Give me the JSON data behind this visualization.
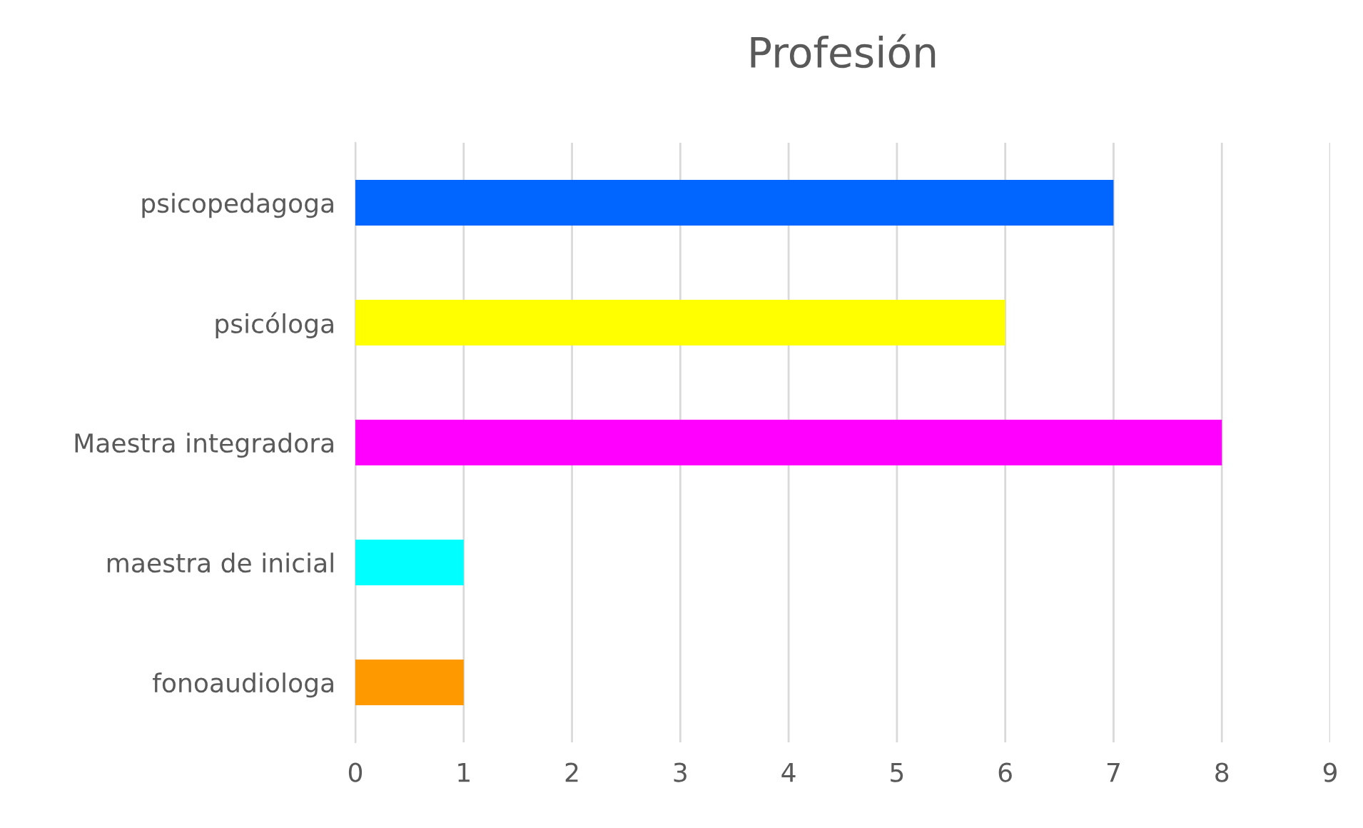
{
  "chart_data": {
    "type": "bar",
    "orientation": "horizontal",
    "title": "Profesión",
    "categories": [
      "psicopedagoga",
      "psicóloga",
      "Maestra integradora",
      "maestra de inicial",
      "fonoaudiologa"
    ],
    "values": [
      7,
      6,
      8,
      1,
      1
    ],
    "colors": [
      "#0066ff",
      "#ffff00",
      "#ff00ff",
      "#00ffff",
      "#ff9900"
    ],
    "xlim": [
      0,
      9
    ],
    "xticks": [
      0,
      1,
      2,
      3,
      4,
      5,
      6,
      7,
      8,
      9
    ],
    "grid": "x",
    "legend": false
  }
}
